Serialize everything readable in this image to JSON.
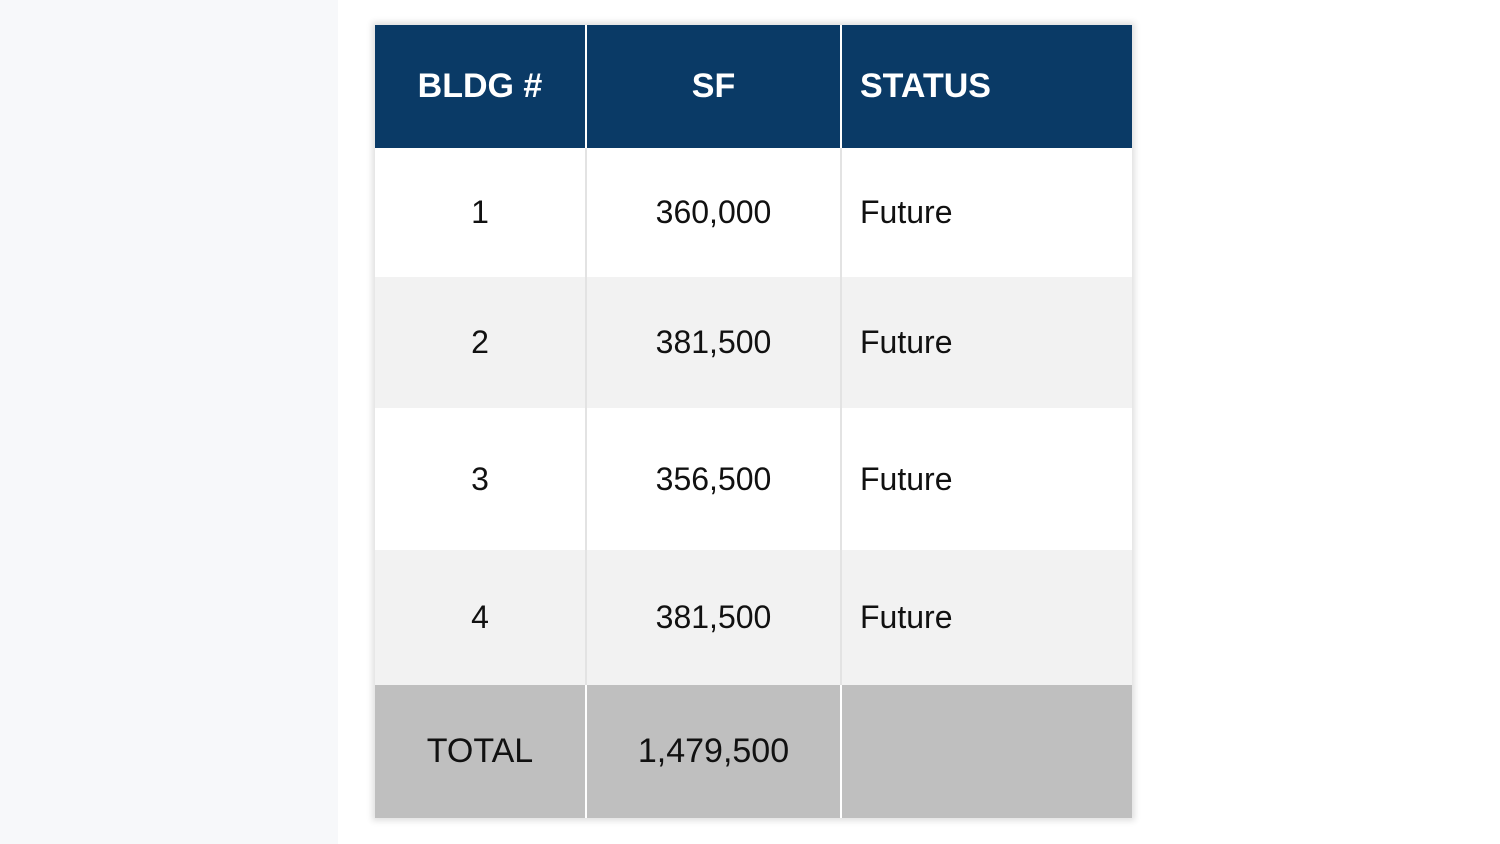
{
  "table": {
    "header": [
      "BLDG #",
      "SF",
      "STATUS"
    ],
    "rows": [
      [
        "1",
        "360,000",
        "Future"
      ],
      [
        "2",
        "381,500",
        "Future"
      ],
      [
        "3",
        "356,500",
        "Future"
      ],
      [
        "4",
        "381,500",
        "Future"
      ]
    ],
    "total": [
      "TOTAL",
      "1,479,500"
    ]
  }
}
